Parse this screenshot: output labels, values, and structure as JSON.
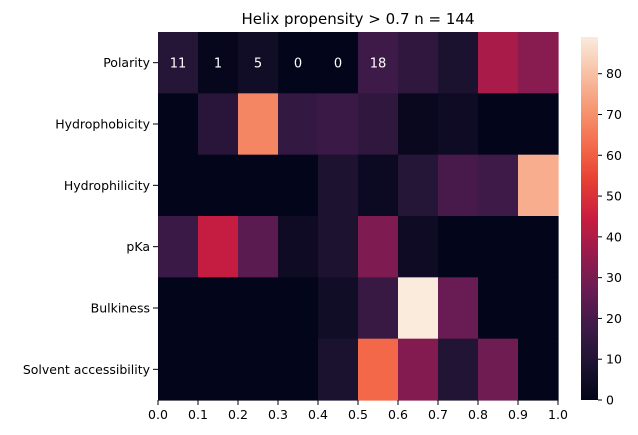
{
  "chart_data": {
    "type": "heatmap",
    "title": "Helix propensity > 0.7   n = 144",
    "rows": [
      "Polarity",
      "Hydrophobicity",
      "Hydrophilicity",
      "pKa",
      "Bulkiness",
      "Solvent accessibility"
    ],
    "x_ticks": [
      "0.0",
      "0.1",
      "0.2",
      "0.3",
      "0.4",
      "0.5",
      "0.6",
      "0.7",
      "0.8",
      "0.9",
      "1.0"
    ],
    "xlim": [
      0.0,
      1.0
    ],
    "values": [
      [
        11,
        1,
        5,
        0,
        0,
        18,
        14,
        8,
        39,
        33
      ],
      [
        0,
        12,
        68,
        15,
        17,
        14,
        2,
        4,
        0,
        0
      ],
      [
        0,
        0,
        0,
        0,
        9,
        3,
        11,
        20,
        18,
        76
      ],
      [
        17,
        44,
        24,
        4,
        9,
        31,
        4,
        0,
        0,
        0
      ],
      [
        0,
        0,
        0,
        0,
        5,
        16,
        89,
        27,
        0,
        0
      ],
      [
        0,
        0,
        0,
        0,
        8,
        62,
        32,
        10,
        28,
        0
      ]
    ],
    "annotated_row": 0,
    "annotated_count": 6,
    "colorbar": {
      "min": 0,
      "max": 89,
      "ticks": [
        "0",
        "10",
        "20",
        "30",
        "40",
        "50",
        "60",
        "70",
        "80"
      ],
      "colormap": "rocket"
    },
    "grid": false
  }
}
